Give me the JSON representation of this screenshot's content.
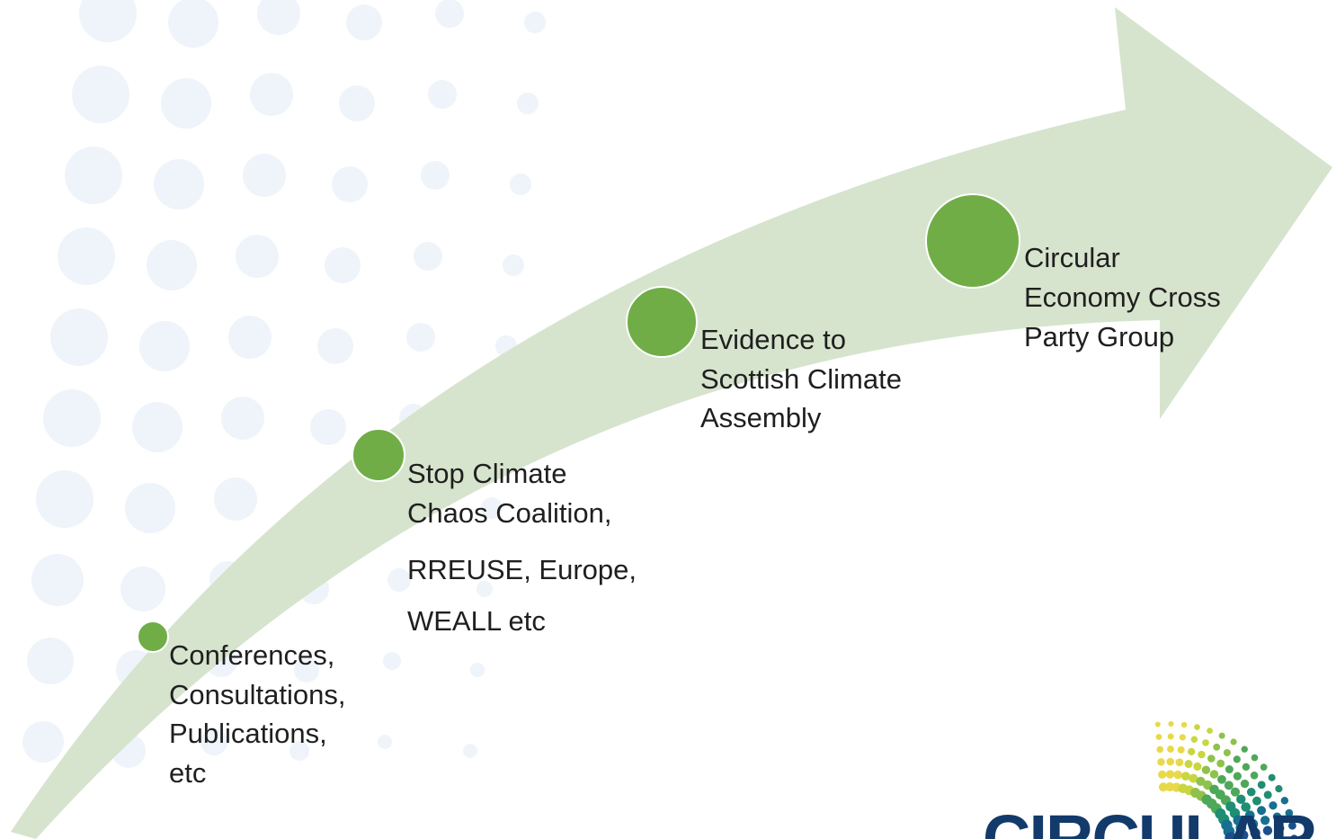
{
  "nodes": [
    {
      "lines": [
        "Conferences,",
        "Consultations,",
        "Publications,",
        "etc"
      ]
    },
    {
      "lines": [
        "Stop Climate",
        "Chaos Coalition,",
        "RREUSE, Europe,",
        "WEALL etc"
      ]
    },
    {
      "lines": [
        "Evidence to",
        "Scottish Climate",
        "Assembly"
      ]
    },
    {
      "lines": [
        "Circular",
        "Economy Cross",
        "Party Group"
      ]
    }
  ],
  "logo": {
    "text": "CIRCULAR"
  }
}
